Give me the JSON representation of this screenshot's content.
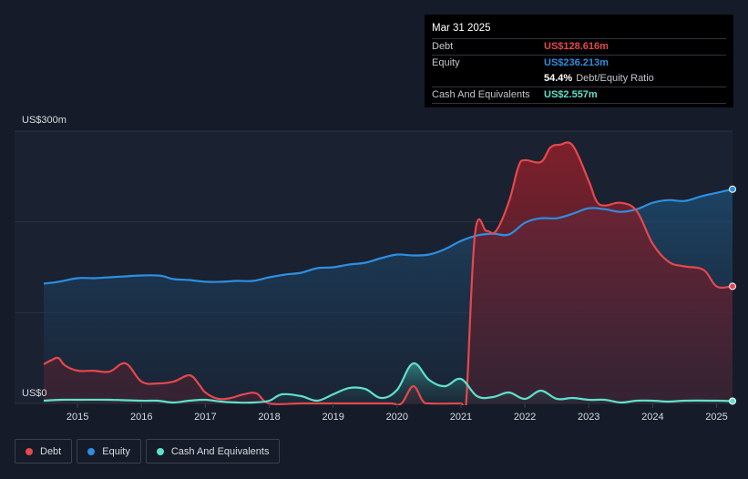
{
  "colors": {
    "debt": "#e5484d",
    "equity": "#2d8fe0",
    "cash": "#5fe0cc",
    "background": "#151b28"
  },
  "tooltip": {
    "date": "Mar 31 2025",
    "debt_label": "Debt",
    "debt_value": "US$128.616m",
    "equity_label": "Equity",
    "equity_value": "US$236.213m",
    "ratio_value": "54.4%",
    "ratio_label": "Debt/Equity Ratio",
    "cash_label": "Cash And Equivalents",
    "cash_value": "US$2.557m"
  },
  "legend": {
    "debt": "Debt",
    "equity": "Equity",
    "cash": "Cash And Equivalents"
  },
  "chart_data": {
    "type": "area",
    "title": "",
    "xlabel": "",
    "ylabel": "",
    "y_top_label": "US$300m",
    "y_bottom_label": "US$0",
    "ylim": [
      0,
      300
    ],
    "xlim": [
      2014.47,
      2025.25
    ],
    "x_ticks": [
      2015,
      2016,
      2017,
      2018,
      2019,
      2020,
      2021,
      2022,
      2023,
      2024,
      2025
    ],
    "x_tick_labels": [
      "2015",
      "2016",
      "2017",
      "2018",
      "2019",
      "2020",
      "2021",
      "2022",
      "2023",
      "2024",
      "2025"
    ],
    "series": [
      {
        "name": "Equity",
        "points": [
          [
            2014.47,
            132
          ],
          [
            2014.7,
            134
          ],
          [
            2015.0,
            138
          ],
          [
            2015.25,
            138
          ],
          [
            2015.5,
            139
          ],
          [
            2015.75,
            140
          ],
          [
            2016.0,
            141
          ],
          [
            2016.25,
            141
          ],
          [
            2016.35,
            140
          ],
          [
            2016.5,
            137
          ],
          [
            2016.75,
            136
          ],
          [
            2017.0,
            134
          ],
          [
            2017.25,
            134
          ],
          [
            2017.5,
            135
          ],
          [
            2017.75,
            135
          ],
          [
            2018.0,
            139
          ],
          [
            2018.25,
            142
          ],
          [
            2018.5,
            144
          ],
          [
            2018.75,
            149
          ],
          [
            2019.0,
            150
          ],
          [
            2019.25,
            153
          ],
          [
            2019.5,
            155
          ],
          [
            2019.75,
            160
          ],
          [
            2020.0,
            164
          ],
          [
            2020.25,
            163
          ],
          [
            2020.5,
            164
          ],
          [
            2020.75,
            170
          ],
          [
            2021.0,
            179
          ],
          [
            2021.25,
            185
          ],
          [
            2021.5,
            187
          ],
          [
            2021.75,
            186
          ],
          [
            2022.0,
            199
          ],
          [
            2022.25,
            204
          ],
          [
            2022.5,
            204
          ],
          [
            2022.75,
            209
          ],
          [
            2023.0,
            215
          ],
          [
            2023.25,
            214
          ],
          [
            2023.5,
            211
          ],
          [
            2023.75,
            214
          ],
          [
            2024.0,
            221
          ],
          [
            2024.25,
            224
          ],
          [
            2024.5,
            223
          ],
          [
            2024.75,
            228
          ],
          [
            2025.0,
            232
          ],
          [
            2025.25,
            236
          ]
        ]
      },
      {
        "name": "Debt",
        "points": [
          [
            2014.47,
            43
          ],
          [
            2014.6,
            48
          ],
          [
            2014.7,
            50
          ],
          [
            2014.8,
            42
          ],
          [
            2015.0,
            36
          ],
          [
            2015.25,
            36
          ],
          [
            2015.5,
            35
          ],
          [
            2015.75,
            44
          ],
          [
            2016.0,
            24
          ],
          [
            2016.25,
            22
          ],
          [
            2016.5,
            24
          ],
          [
            2016.75,
            31
          ],
          [
            2016.9,
            21
          ],
          [
            2017.0,
            12
          ],
          [
            2017.2,
            5
          ],
          [
            2017.4,
            6
          ],
          [
            2017.6,
            10
          ],
          [
            2017.8,
            11
          ],
          [
            2018.0,
            0
          ],
          [
            2018.5,
            0
          ],
          [
            2019.0,
            0
          ],
          [
            2019.5,
            0
          ],
          [
            2019.9,
            0
          ],
          [
            2020.07,
            0
          ],
          [
            2020.25,
            19
          ],
          [
            2020.4,
            3
          ],
          [
            2020.5,
            0
          ],
          [
            2021.0,
            0
          ],
          [
            2021.08,
            0
          ],
          [
            2021.22,
            187
          ],
          [
            2021.4,
            190
          ],
          [
            2021.55,
            190
          ],
          [
            2021.75,
            222
          ],
          [
            2021.9,
            261
          ],
          [
            2022.0,
            268
          ],
          [
            2022.25,
            266
          ],
          [
            2022.4,
            282
          ],
          [
            2022.55,
            285
          ],
          [
            2022.75,
            284
          ],
          [
            2023.0,
            245
          ],
          [
            2023.12,
            223
          ],
          [
            2023.25,
            218
          ],
          [
            2023.5,
            221
          ],
          [
            2023.75,
            212
          ],
          [
            2024.0,
            176
          ],
          [
            2024.25,
            156
          ],
          [
            2024.5,
            151
          ],
          [
            2024.8,
            147
          ],
          [
            2025.0,
            129
          ],
          [
            2025.25,
            129
          ]
        ]
      },
      {
        "name": "Cash And Equivalents",
        "points": [
          [
            2014.47,
            3
          ],
          [
            2014.75,
            4
          ],
          [
            2015.0,
            4
          ],
          [
            2015.5,
            4
          ],
          [
            2016.0,
            3
          ],
          [
            2016.25,
            3
          ],
          [
            2016.5,
            1
          ],
          [
            2016.75,
            3
          ],
          [
            2017.0,
            4
          ],
          [
            2017.25,
            2
          ],
          [
            2017.5,
            1
          ],
          [
            2017.75,
            1
          ],
          [
            2018.0,
            3
          ],
          [
            2018.2,
            10
          ],
          [
            2018.5,
            8
          ],
          [
            2018.75,
            3
          ],
          [
            2019.0,
            10
          ],
          [
            2019.25,
            17
          ],
          [
            2019.5,
            16
          ],
          [
            2019.75,
            6
          ],
          [
            2020.0,
            15
          ],
          [
            2020.25,
            44
          ],
          [
            2020.5,
            26
          ],
          [
            2020.75,
            19
          ],
          [
            2021.0,
            27
          ],
          [
            2021.25,
            8
          ],
          [
            2021.5,
            7
          ],
          [
            2021.75,
            12
          ],
          [
            2022.0,
            5
          ],
          [
            2022.25,
            14
          ],
          [
            2022.5,
            5
          ],
          [
            2022.75,
            6
          ],
          [
            2023.0,
            4
          ],
          [
            2023.25,
            4
          ],
          [
            2023.5,
            1
          ],
          [
            2023.75,
            3
          ],
          [
            2024.0,
            3
          ],
          [
            2024.25,
            2
          ],
          [
            2024.5,
            3
          ],
          [
            2025.0,
            3
          ],
          [
            2025.25,
            2.557
          ]
        ]
      }
    ]
  }
}
